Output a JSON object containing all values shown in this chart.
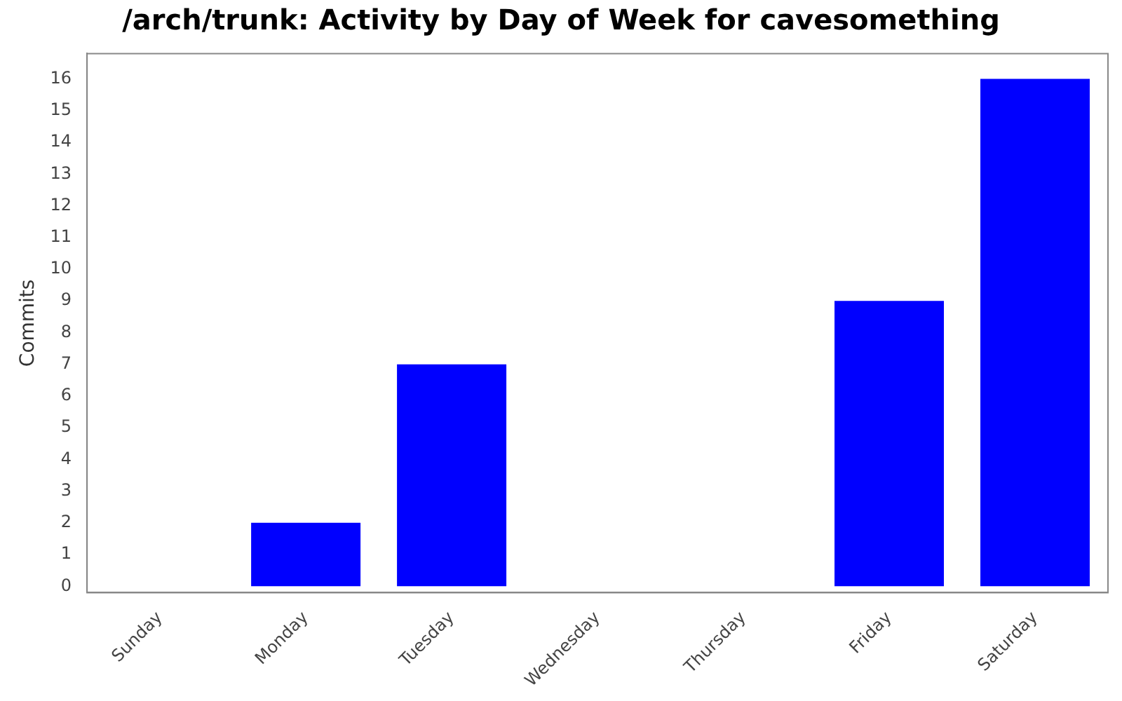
{
  "chart_data": {
    "type": "bar",
    "title": "/arch/trunk: Activity by Day of Week for cavesomething",
    "ylabel": "Commits",
    "categories": [
      "Sunday",
      "Monday",
      "Tuesday",
      "Wednesday",
      "Thursday",
      "Friday",
      "Saturday"
    ],
    "values": [
      0,
      2,
      7,
      0,
      0,
      9,
      16
    ],
    "color": "#0000ff",
    "ylim": [
      -0.2,
      16.8
    ],
    "yticks": [
      0,
      1,
      2,
      3,
      4,
      5,
      6,
      7,
      8,
      9,
      10,
      11,
      12,
      13,
      14,
      15,
      16
    ],
    "grid": false,
    "legend": false
  }
}
